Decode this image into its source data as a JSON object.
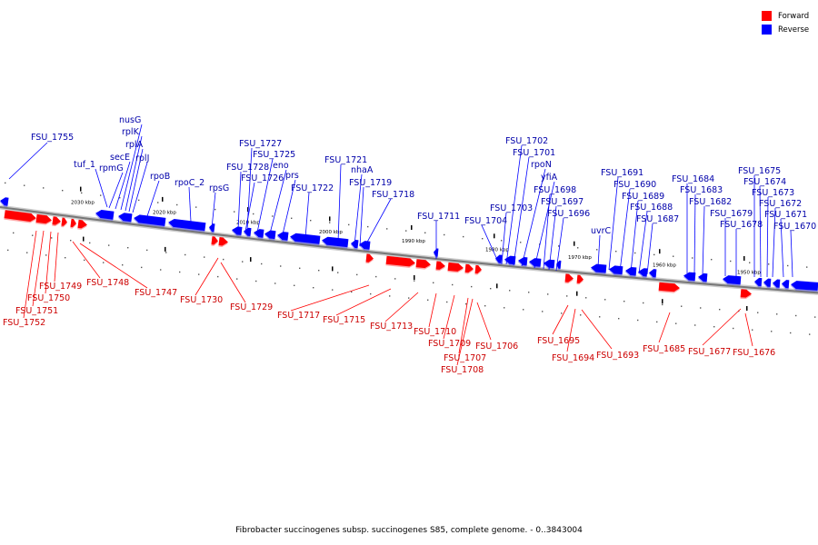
{
  "legend": {
    "items": [
      {
        "label": "Forward",
        "color": "#ff0000"
      },
      {
        "label": "Reverse",
        "color": "#0000ff"
      }
    ]
  },
  "caption": "Fibrobacter succinogenes subsp. succinogenes S85, complete genome. - 0..3843004",
  "colors": {
    "forward_fill": "#ff0000",
    "forward_label": "#cc0000",
    "reverse_fill": "#0000ff",
    "reverse_label": "#0000aa",
    "backbone": "#777777"
  },
  "scale_labels": [
    "2030 kbp",
    "2020 kbp",
    "2010 kbp",
    "2000 kbp",
    "1990 kbp",
    "1980 kbp",
    "1970 kbp",
    "1960 kbp",
    "1950 kbp"
  ],
  "reverse_genes": [
    "FSU_1755",
    "tuf_1",
    "rpmG",
    "secE",
    "nusG",
    "rplK",
    "rplA",
    "rplJ",
    "rpoB",
    "rpoC_2",
    "rpsG",
    "FSU_1727",
    "FSU_1728",
    "FSU_1726",
    "FSU_1725",
    "eno",
    "prs",
    "FSU_1722",
    "FSU_1721",
    "nhaA",
    "FSU_1719",
    "FSU_1718",
    "FSU_1711",
    "FSU_1704",
    "FSU_1703",
    "FSU_1702",
    "FSU_1701",
    "rpoN",
    "yfiA",
    "FSU_1698",
    "FSU_1697",
    "FSU_1696",
    "uvrC",
    "FSU_1691",
    "FSU_1690",
    "FSU_1689",
    "FSU_1688",
    "FSU_1687",
    "FSU_1684",
    "FSU_1683",
    "FSU_1682",
    "FSU_1679",
    "FSU_1678",
    "FSU_1675",
    "FSU_1674",
    "FSU_1673",
    "FSU_1672",
    "FSU_1671",
    "FSU_1670"
  ],
  "forward_genes": [
    "FSU_1752",
    "FSU_1751",
    "FSU_1750",
    "FSU_1749",
    "FSU_1748",
    "FSU_1747",
    "FSU_1730",
    "FSU_1729",
    "FSU_1717",
    "FSU_1715",
    "FSU_1713",
    "FSU_1710",
    "FSU_1709",
    "FSU_1707",
    "FSU_1708",
    "FSU_1706",
    "FSU_1695",
    "FSU_1694",
    "FSU_1693",
    "FSU_1685",
    "FSU_1677",
    "FSU_1676"
  ]
}
